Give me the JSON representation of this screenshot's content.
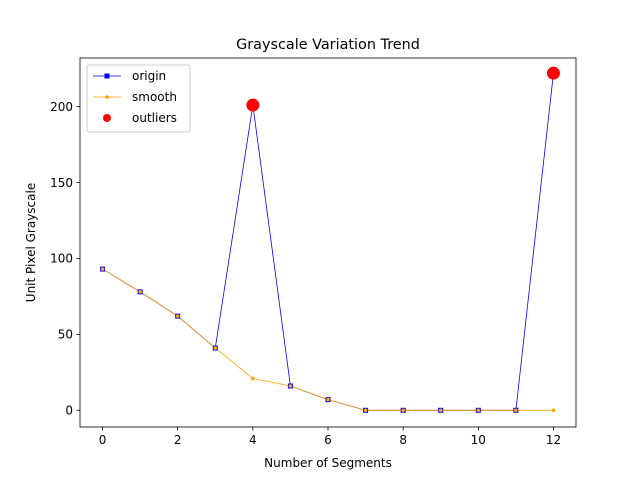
{
  "chart_data": {
    "type": "line",
    "title": "Grayscale Variation Trend",
    "xlabel": "Number of Segments",
    "ylabel": "Unit Pixel Grayscale",
    "xlim": [
      -0.6,
      12.6
    ],
    "ylim": [
      -11,
      232
    ],
    "x_ticks": [
      0,
      2,
      4,
      6,
      8,
      10,
      12
    ],
    "y_ticks": [
      0,
      50,
      100,
      150,
      200
    ],
    "grid": false,
    "legend_position": "upper-left",
    "x": [
      0,
      1,
      2,
      3,
      4,
      5,
      6,
      7,
      8,
      9,
      10,
      11,
      12
    ],
    "series": [
      {
        "name": "origin",
        "color": "#0000ff",
        "marker": "square",
        "values": [
          93,
          78,
          62,
          41,
          201,
          16,
          7,
          0,
          0,
          0,
          0,
          0,
          222
        ]
      },
      {
        "name": "smooth",
        "color": "#ffa500",
        "marker": "dot",
        "values": [
          93,
          78,
          62,
          41,
          21,
          16,
          7,
          0,
          0,
          0,
          0,
          0,
          0
        ]
      },
      {
        "name": "outliers",
        "color": "#ff0000",
        "marker": "big-dot",
        "x": [
          4,
          12
        ],
        "values": [
          201,
          222
        ]
      }
    ]
  }
}
